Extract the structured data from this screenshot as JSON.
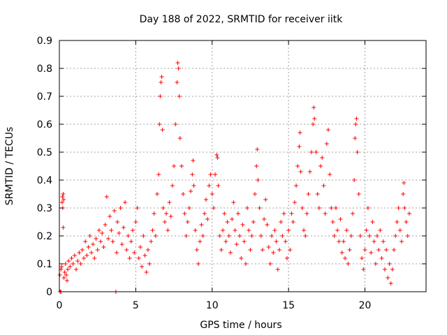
{
  "chart_data": {
    "type": "scatter",
    "title": "Day 188 of 2022, SRMTID for receiver iitk",
    "xlabel": "GPS time / hours",
    "ylabel": "SRMTID / TECUs",
    "xlim": [
      0,
      24
    ],
    "ylim": [
      0,
      0.9
    ],
    "xticks": [
      0,
      5,
      10,
      15,
      20
    ],
    "yticks": [
      0,
      0.1,
      0.2,
      0.3,
      0.4,
      0.5,
      0.6,
      0.7,
      0.8,
      0.9
    ],
    "grid": true,
    "marker": "+",
    "color": "#ff0000",
    "series": [
      {
        "name": "SRMTID",
        "points": [
          [
            0.03,
            0.06
          ],
          [
            0.05,
            0.0
          ],
          [
            0.1,
            0.08
          ],
          [
            0.1,
            0.0
          ],
          [
            0.15,
            0.09
          ],
          [
            0.18,
            0.32
          ],
          [
            0.2,
            0.34
          ],
          [
            0.22,
            0.3
          ],
          [
            0.25,
            0.35
          ],
          [
            0.28,
            0.33
          ],
          [
            0.25,
            0.23
          ],
          [
            0.3,
            0.05
          ],
          [
            0.35,
            0.07
          ],
          [
            0.4,
            0.1
          ],
          [
            0.45,
            0.06
          ],
          [
            0.5,
            0.04
          ],
          [
            0.55,
            0.08
          ],
          [
            0.6,
            0.11
          ],
          [
            0.7,
            0.09
          ],
          [
            0.8,
            0.12
          ],
          [
            0.9,
            0.1
          ],
          [
            1.0,
            0.13
          ],
          [
            1.1,
            0.08
          ],
          [
            1.2,
            0.11
          ],
          [
            1.3,
            0.14
          ],
          [
            1.4,
            0.1
          ],
          [
            1.5,
            0.15
          ],
          [
            1.6,
            0.12
          ],
          [
            1.7,
            0.18
          ],
          [
            1.8,
            0.13
          ],
          [
            1.9,
            0.16
          ],
          [
            2.0,
            0.2
          ],
          [
            2.1,
            0.14
          ],
          [
            2.2,
            0.17
          ],
          [
            2.3,
            0.12
          ],
          [
            2.4,
            0.19
          ],
          [
            2.5,
            0.15
          ],
          [
            2.6,
            0.22
          ],
          [
            2.7,
            0.18
          ],
          [
            2.8,
            0.21
          ],
          [
            2.9,
            0.16
          ],
          [
            3.0,
            0.24
          ],
          [
            3.1,
            0.34
          ],
          [
            3.2,
            0.19
          ],
          [
            3.3,
            0.27
          ],
          [
            3.4,
            0.22
          ],
          [
            3.5,
            0.18
          ],
          [
            3.6,
            0.29
          ],
          [
            3.7,
            0.0
          ],
          [
            3.75,
            0.14
          ],
          [
            3.8,
            0.25
          ],
          [
            3.9,
            0.21
          ],
          [
            4.0,
            0.3
          ],
          [
            4.1,
            0.17
          ],
          [
            4.2,
            0.23
          ],
          [
            4.3,
            0.32
          ],
          [
            4.4,
            0.15
          ],
          [
            4.5,
            0.2
          ],
          [
            4.6,
            0.12
          ],
          [
            4.7,
            0.18
          ],
          [
            4.8,
            0.22
          ],
          [
            4.9,
            0.14
          ],
          [
            5.0,
            0.25
          ],
          [
            5.1,
            0.3
          ],
          [
            5.2,
            0.12
          ],
          [
            5.3,
            0.16
          ],
          [
            5.4,
            0.09
          ],
          [
            5.5,
            0.2
          ],
          [
            5.6,
            0.13
          ],
          [
            5.7,
            0.07
          ],
          [
            5.8,
            0.15
          ],
          [
            5.9,
            0.1
          ],
          [
            6.0,
            0.18
          ],
          [
            6.1,
            0.22
          ],
          [
            6.2,
            0.28
          ],
          [
            6.3,
            0.2
          ],
          [
            6.4,
            0.35
          ],
          [
            6.5,
            0.42
          ],
          [
            6.55,
            0.6
          ],
          [
            6.6,
            0.7
          ],
          [
            6.65,
            0.75
          ],
          [
            6.7,
            0.77
          ],
          [
            6.75,
            0.58
          ],
          [
            6.8,
            0.3
          ],
          [
            6.9,
            0.25
          ],
          [
            7.0,
            0.28
          ],
          [
            7.1,
            0.22
          ],
          [
            7.2,
            0.32
          ],
          [
            7.3,
            0.27
          ],
          [
            7.4,
            0.38
          ],
          [
            7.5,
            0.45
          ],
          [
            7.6,
            0.6
          ],
          [
            7.7,
            0.75
          ],
          [
            7.75,
            0.82
          ],
          [
            7.8,
            0.8
          ],
          [
            7.85,
            0.7
          ],
          [
            7.9,
            0.55
          ],
          [
            8.0,
            0.45
          ],
          [
            8.1,
            0.35
          ],
          [
            8.2,
            0.28
          ],
          [
            8.3,
            0.2
          ],
          [
            8.4,
            0.25
          ],
          [
            8.5,
            0.3
          ],
          [
            8.6,
            0.36
          ],
          [
            8.7,
            0.42
          ],
          [
            8.75,
            0.47
          ],
          [
            8.8,
            0.38
          ],
          [
            8.9,
            0.22
          ],
          [
            9.0,
            0.15
          ],
          [
            9.1,
            0.1
          ],
          [
            9.2,
            0.18
          ],
          [
            9.3,
            0.24
          ],
          [
            9.4,
            0.2
          ],
          [
            9.5,
            0.28
          ],
          [
            9.6,
            0.33
          ],
          [
            9.7,
            0.26
          ],
          [
            9.8,
            0.38
          ],
          [
            9.9,
            0.42
          ],
          [
            10.0,
            0.35
          ],
          [
            10.1,
            0.3
          ],
          [
            10.2,
            0.42
          ],
          [
            10.3,
            0.49
          ],
          [
            10.35,
            0.48
          ],
          [
            10.4,
            0.38
          ],
          [
            10.5,
            0.2
          ],
          [
            10.6,
            0.15
          ],
          [
            10.7,
            0.22
          ],
          [
            10.8,
            0.28
          ],
          [
            10.9,
            0.18
          ],
          [
            11.0,
            0.25
          ],
          [
            11.1,
            0.2
          ],
          [
            11.2,
            0.14
          ],
          [
            11.3,
            0.26
          ],
          [
            11.4,
            0.32
          ],
          [
            11.5,
            0.22
          ],
          [
            11.6,
            0.17
          ],
          [
            11.7,
            0.28
          ],
          [
            11.8,
            0.2
          ],
          [
            11.9,
            0.12
          ],
          [
            12.0,
            0.24
          ],
          [
            12.1,
            0.18
          ],
          [
            12.2,
            0.1
          ],
          [
            12.3,
            0.3
          ],
          [
            12.4,
            0.22
          ],
          [
            12.5,
            0.15
          ],
          [
            12.6,
            0.2
          ],
          [
            12.7,
            0.25
          ],
          [
            12.8,
            0.35
          ],
          [
            12.9,
            0.45
          ],
          [
            12.95,
            0.51
          ],
          [
            13.0,
            0.4
          ],
          [
            13.1,
            0.3
          ],
          [
            13.2,
            0.2
          ],
          [
            13.3,
            0.15
          ],
          [
            13.4,
            0.26
          ],
          [
            13.5,
            0.33
          ],
          [
            13.6,
            0.24
          ],
          [
            13.7,
            0.16
          ],
          [
            13.8,
            0.1
          ],
          [
            13.9,
            0.2
          ],
          [
            14.0,
            0.14
          ],
          [
            14.1,
            0.22
          ],
          [
            14.2,
            0.18
          ],
          [
            14.3,
            0.08
          ],
          [
            14.4,
            0.15
          ],
          [
            14.5,
            0.25
          ],
          [
            14.6,
            0.2
          ],
          [
            14.7,
            0.28
          ],
          [
            14.8,
            0.18
          ],
          [
            14.9,
            0.12
          ],
          [
            15.0,
            0.22
          ],
          [
            15.1,
            0.15
          ],
          [
            15.2,
            0.28
          ],
          [
            15.3,
            0.25
          ],
          [
            15.4,
            0.32
          ],
          [
            15.5,
            0.38
          ],
          [
            15.6,
            0.45
          ],
          [
            15.7,
            0.52
          ],
          [
            15.75,
            0.57
          ],
          [
            15.8,
            0.43
          ],
          [
            15.9,
            0.3
          ],
          [
            16.0,
            0.22
          ],
          [
            16.1,
            0.2
          ],
          [
            16.2,
            0.28
          ],
          [
            16.3,
            0.35
          ],
          [
            16.4,
            0.43
          ],
          [
            16.5,
            0.5
          ],
          [
            16.6,
            0.6
          ],
          [
            16.65,
            0.66
          ],
          [
            16.7,
            0.62
          ],
          [
            16.8,
            0.5
          ],
          [
            16.9,
            0.35
          ],
          [
            17.0,
            0.3
          ],
          [
            17.1,
            0.45
          ],
          [
            17.2,
            0.48
          ],
          [
            17.3,
            0.38
          ],
          [
            17.4,
            0.28
          ],
          [
            17.5,
            0.53
          ],
          [
            17.6,
            0.58
          ],
          [
            17.7,
            0.42
          ],
          [
            17.8,
            0.3
          ],
          [
            17.9,
            0.25
          ],
          [
            18.0,
            0.2
          ],
          [
            18.1,
            0.3
          ],
          [
            18.2,
            0.22
          ],
          [
            18.3,
            0.18
          ],
          [
            18.4,
            0.26
          ],
          [
            18.5,
            0.14
          ],
          [
            18.6,
            0.18
          ],
          [
            18.7,
            0.12
          ],
          [
            18.8,
            0.22
          ],
          [
            18.9,
            0.1
          ],
          [
            19.0,
            0.15
          ],
          [
            19.1,
            0.2
          ],
          [
            19.2,
            0.28
          ],
          [
            19.3,
            0.4
          ],
          [
            19.35,
            0.55
          ],
          [
            19.4,
            0.6
          ],
          [
            19.45,
            0.62
          ],
          [
            19.5,
            0.5
          ],
          [
            19.6,
            0.35
          ],
          [
            19.7,
            0.2
          ],
          [
            19.8,
            0.12
          ],
          [
            19.9,
            0.08
          ],
          [
            20.0,
            0.15
          ],
          [
            20.1,
            0.22
          ],
          [
            20.2,
            0.3
          ],
          [
            20.3,
            0.2
          ],
          [
            20.4,
            0.14
          ],
          [
            20.5,
            0.25
          ],
          [
            20.6,
            0.18
          ],
          [
            20.7,
            0.1
          ],
          [
            20.8,
            0.2
          ],
          [
            20.9,
            0.15
          ],
          [
            21.0,
            0.22
          ],
          [
            21.1,
            0.12
          ],
          [
            21.2,
            0.18
          ],
          [
            21.3,
            0.08
          ],
          [
            21.4,
            0.15
          ],
          [
            21.5,
            0.05
          ],
          [
            21.6,
            0.1
          ],
          [
            21.7,
            0.03
          ],
          [
            21.8,
            0.08
          ],
          [
            21.9,
            0.15
          ],
          [
            22.0,
            0.2
          ],
          [
            22.1,
            0.25
          ],
          [
            22.2,
            0.3
          ],
          [
            22.3,
            0.22
          ],
          [
            22.4,
            0.18
          ],
          [
            22.5,
            0.35
          ],
          [
            22.55,
            0.39
          ],
          [
            22.6,
            0.3
          ],
          [
            22.7,
            0.25
          ],
          [
            22.8,
            0.2
          ],
          [
            22.9,
            0.28
          ]
        ]
      }
    ]
  }
}
